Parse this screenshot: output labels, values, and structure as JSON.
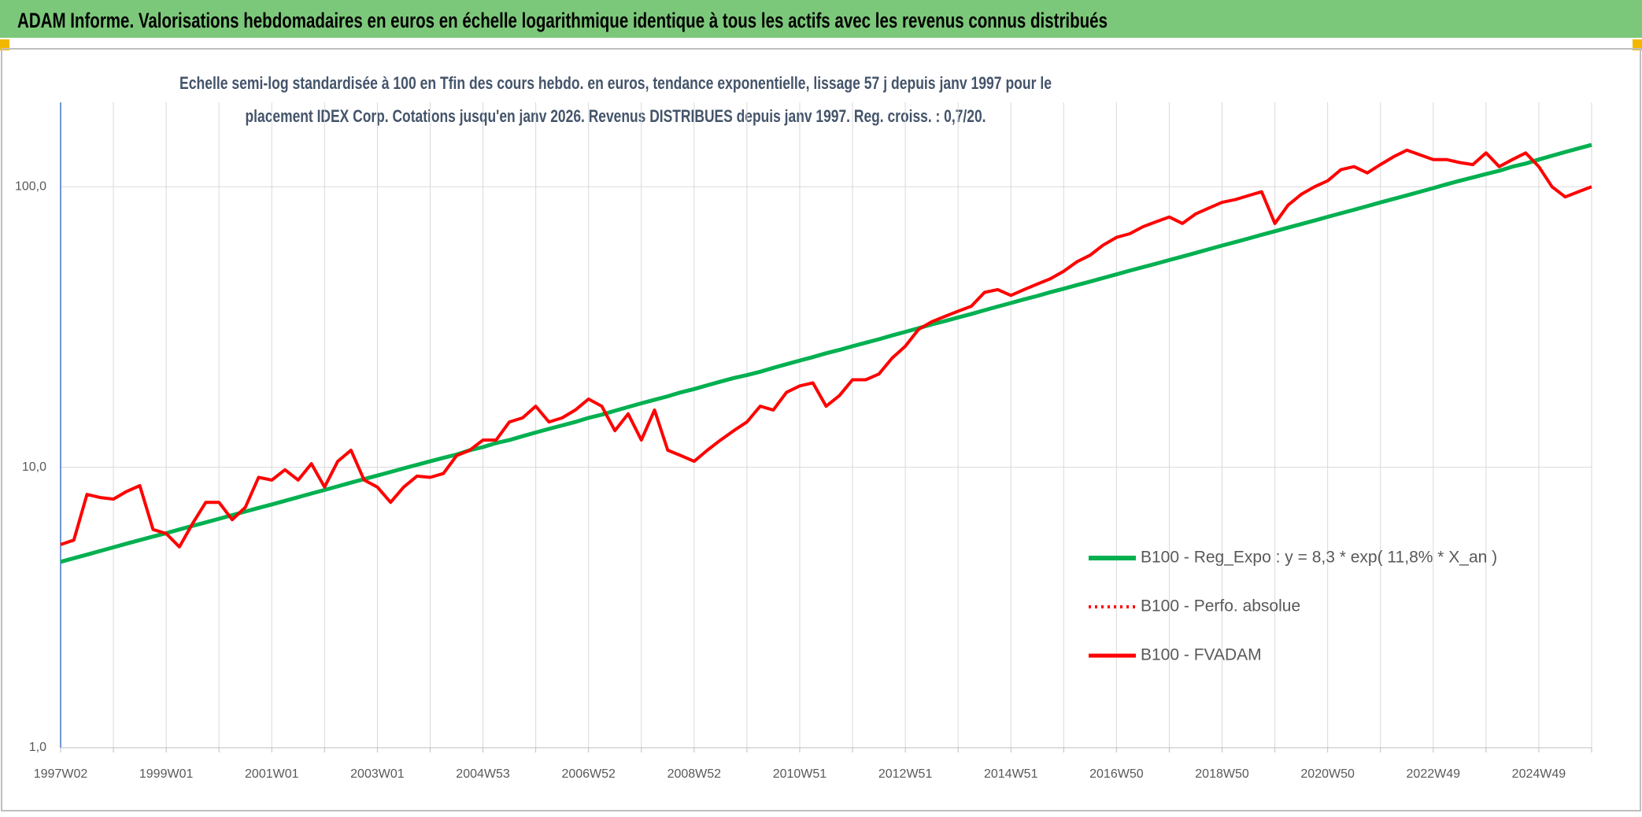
{
  "chart_data": {
    "type": "line",
    "title": "ADAM Informe. Valorisations hebdomadaires en euros en échelle logarithmique identique à tous les actifs avec les revenus connus distribués",
    "subtitle": [
      "Echelle semi-log standardisée à 100 en Tfin des cours hebdo. en euros, tendance exponentielle, lissage 57 j depuis janv 1997 pour le",
      "placement IDEX Corp. Cotations jusqu'en janv 2026. Revenus DISTRIBUES depuis janv 1997. Reg. croiss. : 0,7/20."
    ],
    "categories": [
      "1997W02",
      null,
      null,
      null,
      null,
      null,
      null,
      null,
      "1999W01",
      null,
      null,
      null,
      null,
      null,
      null,
      null,
      "2001W01",
      null,
      null,
      null,
      null,
      null,
      null,
      null,
      "2003W01",
      null,
      null,
      null,
      null,
      null,
      null,
      null,
      "2004W53",
      null,
      null,
      null,
      null,
      null,
      null,
      null,
      "2006W52",
      null,
      null,
      null,
      null,
      null,
      null,
      null,
      "2008W52",
      null,
      null,
      null,
      null,
      null,
      null,
      null,
      "2010W51",
      null,
      null,
      null,
      null,
      null,
      null,
      null,
      "2012W51",
      null,
      null,
      null,
      null,
      null,
      null,
      null,
      "2014W51",
      null,
      null,
      null,
      null,
      null,
      null,
      null,
      "2016W50",
      null,
      null,
      null,
      null,
      null,
      null,
      null,
      "2018W50",
      null,
      null,
      null,
      null,
      null,
      null,
      null,
      "2020W50",
      null,
      null,
      null,
      null,
      null,
      null,
      null,
      "2022W49",
      null,
      null,
      null,
      null,
      null,
      null,
      null,
      "2024W49",
      null,
      null,
      null,
      null
    ],
    "series": [
      {
        "name": "B100 - Reg_Expo : y = 8,3 * exp( 11,8% *  X_an )",
        "color": "#00b050",
        "style": "solid",
        "width": 5,
        "values": [
          4.6,
          4.74,
          4.88,
          5.03,
          5.18,
          5.34,
          5.5,
          5.66,
          5.82,
          6.0,
          6.18,
          6.36,
          6.55,
          6.75,
          6.95,
          7.16,
          7.37,
          7.59,
          7.82,
          8.06,
          8.3,
          8.55,
          8.81,
          9.07,
          9.34,
          9.62,
          9.91,
          10.2,
          10.5,
          10.8,
          11.1,
          11.5,
          11.8,
          12.2,
          12.5,
          12.9,
          13.3,
          13.7,
          14.1,
          14.5,
          15.0,
          15.4,
          15.9,
          16.4,
          16.9,
          17.4,
          17.9,
          18.5,
          19.0,
          19.6,
          20.2,
          20.8,
          21.3,
          21.9,
          22.6,
          23.3,
          24.0,
          24.7,
          25.5,
          26.2,
          27.0,
          27.8,
          28.6,
          29.5,
          30.4,
          31.3,
          32.3,
          33.2,
          34.2,
          35.2,
          36.3,
          37.4,
          38.5,
          39.7,
          40.8,
          42.1,
          43.3,
          44.6,
          45.9,
          47.3,
          48.7,
          50.2,
          51.7,
          53.2,
          54.8,
          56.4,
          58.1,
          59.9,
          61.7,
          63.5,
          65.4,
          67.4,
          69.4,
          71.5,
          73.6,
          75.8,
          78.1,
          80.4,
          82.8,
          85.3,
          87.9,
          90.5,
          93.2,
          96.0,
          98.9,
          102,
          105,
          108,
          111,
          114,
          118,
          121,
          125,
          129,
          133,
          137,
          141
        ]
      },
      {
        "name": "B100 - Perfo. absolue",
        "color": "#ff0000",
        "style": "dotted",
        "width": 3,
        "values": [
          5.3,
          5.5,
          8.0,
          7.8,
          7.7,
          8.2,
          8.6,
          6.0,
          5.8,
          5.2,
          6.3,
          7.5,
          7.5,
          6.5,
          7.2,
          9.2,
          9.0,
          9.8,
          9.0,
          10.3,
          8.5,
          10.5,
          11.5,
          9.0,
          8.5,
          7.5,
          8.5,
          9.3,
          9.2,
          9.5,
          11.0,
          11.5,
          12.5,
          12.5,
          14.5,
          15.0,
          16.5,
          14.5,
          15.0,
          16.0,
          17.5,
          16.5,
          13.5,
          15.5,
          12.5,
          16.0,
          11.5,
          11.0,
          10.5,
          11.5,
          12.5,
          13.5,
          14.5,
          16.5,
          16.0,
          18.5,
          19.5,
          20.0,
          16.5,
          18.0,
          20.5,
          20.5,
          21.5,
          24.5,
          27.0,
          31.0,
          33.0,
          34.5,
          36.0,
          37.5,
          42.0,
          43.0,
          41.0,
          43.0,
          45.0,
          47.0,
          50.0,
          54.0,
          57.0,
          62.0,
          66.0,
          68.0,
          72.0,
          75.0,
          78.0,
          74.0,
          80.0,
          84.0,
          88.0,
          90.0,
          93.0,
          96.0,
          74.0,
          86.0,
          94.0,
          100.0,
          105.0,
          115.0,
          118.0,
          112.0,
          120.0,
          128.0,
          135.0,
          130.0,
          125.0,
          125.0,
          122.0,
          120.0,
          132.0,
          118.0,
          125.0,
          132.0,
          118.0,
          100.0,
          92.0,
          96.0,
          100.0
        ]
      },
      {
        "name": "B100 - FVADAM",
        "color": "#ff0000",
        "style": "solid",
        "width": 4,
        "values": [
          5.3,
          5.5,
          8.0,
          7.8,
          7.7,
          8.2,
          8.6,
          6.0,
          5.8,
          5.2,
          6.3,
          7.5,
          7.5,
          6.5,
          7.2,
          9.2,
          9.0,
          9.8,
          9.0,
          10.3,
          8.5,
          10.5,
          11.5,
          9.0,
          8.5,
          7.5,
          8.5,
          9.3,
          9.2,
          9.5,
          11.0,
          11.5,
          12.5,
          12.5,
          14.5,
          15.0,
          16.5,
          14.5,
          15.0,
          16.0,
          17.5,
          16.5,
          13.5,
          15.5,
          12.5,
          16.0,
          11.5,
          11.0,
          10.5,
          11.5,
          12.5,
          13.5,
          14.5,
          16.5,
          16.0,
          18.5,
          19.5,
          20.0,
          16.5,
          18.0,
          20.5,
          20.5,
          21.5,
          24.5,
          27.0,
          31.0,
          33.0,
          34.5,
          36.0,
          37.5,
          42.0,
          43.0,
          41.0,
          43.0,
          45.0,
          47.0,
          50.0,
          54.0,
          57.0,
          62.0,
          66.0,
          68.0,
          72.0,
          75.0,
          78.0,
          74.0,
          80.0,
          84.0,
          88.0,
          90.0,
          93.0,
          96.0,
          74.0,
          86.0,
          94.0,
          100.0,
          105.0,
          115.0,
          118.0,
          112.0,
          120.0,
          128.0,
          135.0,
          130.0,
          125.0,
          125.0,
          122.0,
          120.0,
          132.0,
          118.0,
          125.0,
          132.0,
          118.0,
          100.0,
          92.0,
          96.0,
          100.0
        ]
      }
    ],
    "ylim": [
      1,
      200
    ],
    "log_scale": true,
    "yticks": [
      {
        "value": 1,
        "label": "1,0"
      },
      {
        "value": 10,
        "label": "10,0"
      },
      {
        "value": 100,
        "label": "100,0"
      }
    ],
    "grid": true,
    "legend": "lower right"
  }
}
